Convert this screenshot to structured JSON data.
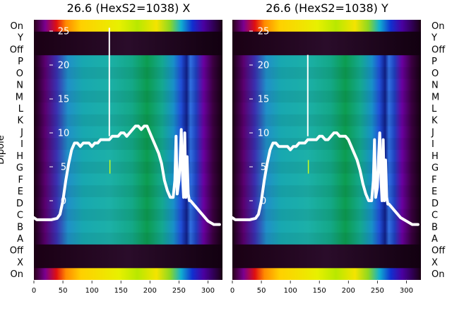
{
  "chart_data": [
    {
      "type": "heatmap",
      "title": "26.6 (HexS2=1038) X",
      "ylabel": "Dipole",
      "row_labels": [
        "On",
        "Y",
        "Off",
        "P",
        "O",
        "N",
        "M",
        "L",
        "K",
        "J",
        "I",
        "H",
        "G",
        "F",
        "E",
        "D",
        "C",
        "B",
        "A",
        "Off",
        "X",
        "On"
      ],
      "x_ticks": [
        0,
        50,
        100,
        150,
        200,
        250,
        300
      ],
      "xlim": [
        0,
        325
      ],
      "overlay_ticks": [
        25,
        20,
        15,
        10,
        5,
        0
      ],
      "overlay_ylim": [
        -3,
        27
      ],
      "trace": {
        "x": [
          0,
          5,
          10,
          20,
          30,
          40,
          45,
          50,
          55,
          60,
          65,
          70,
          75,
          80,
          85,
          90,
          95,
          100,
          105,
          110,
          115,
          120,
          125,
          130,
          135,
          140,
          145,
          150,
          155,
          160,
          165,
          170,
          175,
          180,
          185,
          190,
          195,
          200,
          205,
          210,
          215,
          220,
          225,
          230,
          235,
          240,
          243,
          245,
          247,
          250,
          252,
          254,
          256,
          258,
          260,
          262,
          264,
          266,
          268,
          270,
          275,
          280,
          285,
          290,
          300,
          310,
          320
        ],
        "y": [
          -2.5,
          -2.8,
          -2.8,
          -2.8,
          -2.8,
          -2.6,
          -2,
          0,
          3,
          5.5,
          7.5,
          8.5,
          8.5,
          8,
          8.5,
          8.5,
          8.5,
          8,
          8.5,
          8.5,
          9,
          9,
          9,
          9,
          9.5,
          9.5,
          9.5,
          10,
          10,
          9.5,
          10,
          10.5,
          11,
          11,
          10.5,
          11,
          11,
          10,
          9,
          8,
          7,
          5.5,
          3,
          1.5,
          0.5,
          0.5,
          3,
          9.5,
          1,
          3,
          6,
          10.5,
          4,
          0.5,
          10,
          0.5,
          6.5,
          1,
          0,
          0,
          -0.5,
          -1,
          -1.5,
          -2,
          -3,
          -3.5,
          -3.5
        ]
      },
      "spike": {
        "x": 130,
        "y_bottom": 9.5,
        "y_top": 25.5
      },
      "marker": {
        "x": 131,
        "y_bottom": 4,
        "y_top": 6
      }
    },
    {
      "type": "heatmap",
      "title": "26.6 (HexS2=1038) Y",
      "ylabel": "",
      "row_labels": [
        "On",
        "Y",
        "Off",
        "P",
        "O",
        "N",
        "M",
        "L",
        "K",
        "J",
        "I",
        "H",
        "G",
        "F",
        "E",
        "D",
        "C",
        "B",
        "A",
        "Off",
        "X",
        "On"
      ],
      "x_ticks": [
        0,
        50,
        100,
        150,
        200,
        250,
        300
      ],
      "xlim": [
        0,
        325
      ],
      "overlay_ticks": [
        25,
        20,
        15,
        10,
        5,
        0
      ],
      "overlay_ylim": [
        -3,
        27
      ],
      "trace": {
        "x": [
          0,
          5,
          10,
          20,
          30,
          40,
          45,
          50,
          55,
          60,
          65,
          70,
          75,
          80,
          85,
          90,
          95,
          100,
          105,
          110,
          115,
          120,
          125,
          130,
          135,
          140,
          145,
          150,
          155,
          160,
          165,
          170,
          175,
          180,
          185,
          190,
          195,
          200,
          205,
          210,
          215,
          220,
          225,
          230,
          235,
          240,
          243,
          245,
          247,
          250,
          252,
          254,
          256,
          258,
          260,
          262,
          264,
          266,
          268,
          270,
          275,
          280,
          285,
          290,
          300,
          310,
          320
        ],
        "y": [
          -2.5,
          -2.8,
          -2.8,
          -2.8,
          -2.8,
          -2.6,
          -2,
          0,
          3,
          5.5,
          7.5,
          8.5,
          8.5,
          8,
          8,
          8,
          8,
          7.5,
          8,
          8,
          8.5,
          8.5,
          8.5,
          9,
          9,
          9,
          9,
          9.5,
          9.5,
          9,
          9,
          9.5,
          10,
          10,
          9.5,
          9.5,
          9.5,
          9,
          8,
          7,
          6,
          4.5,
          2.5,
          1,
          0,
          0,
          3,
          9,
          0.5,
          2,
          6.5,
          10,
          3.5,
          0,
          9,
          0,
          6,
          0.5,
          -0.5,
          -0.5,
          -1,
          -1.5,
          -2,
          -2.5,
          -3,
          -3.5,
          -3.5
        ]
      },
      "spike": {
        "x": 130,
        "y_bottom": 9.5,
        "y_top": 21.5
      },
      "marker": {
        "x": 131,
        "y_bottom": 4,
        "y_top": 6
      }
    }
  ]
}
